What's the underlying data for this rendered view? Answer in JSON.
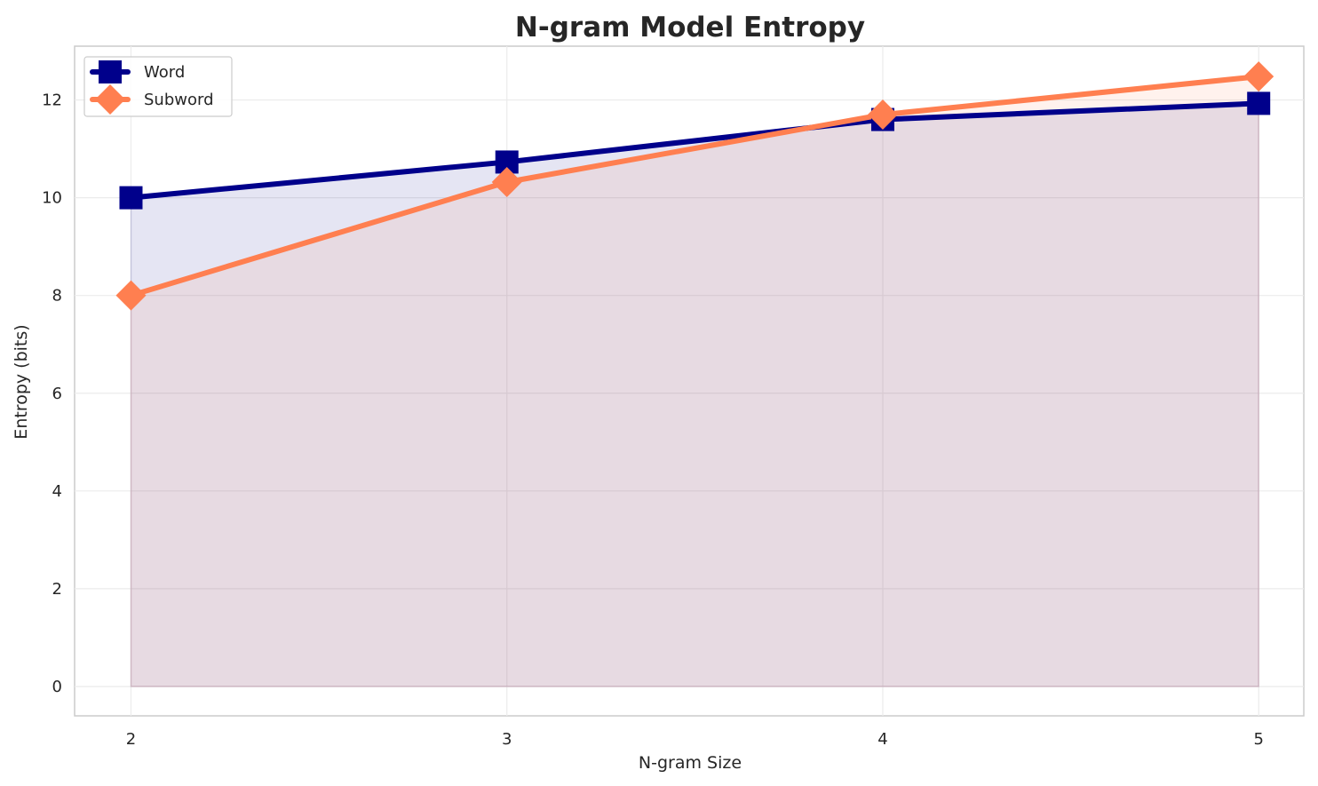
{
  "chart_data": {
    "type": "line",
    "title": "N-gram Model Entropy",
    "xlabel": "N-gram Size",
    "ylabel": "Entropy (bits)",
    "x": [
      2,
      3,
      4,
      5
    ],
    "x_ticks": [
      "2",
      "3",
      "4",
      "5"
    ],
    "y_ticks": [
      "0",
      "2",
      "4",
      "6",
      "8",
      "10",
      "12"
    ],
    "xlim": [
      1.85,
      5.12
    ],
    "ylim": [
      -0.6,
      13.1
    ],
    "grid": true,
    "legend_position": "top-left",
    "area_fill": true,
    "series": [
      {
        "name": "Word",
        "values": [
          10.0,
          10.73,
          11.6,
          11.93
        ],
        "color": "#00008b",
        "marker": "square",
        "fill_color": "#e6e6f6"
      },
      {
        "name": "Subword",
        "values": [
          8.0,
          10.32,
          11.7,
          12.48
        ],
        "color": "#ff7f50",
        "marker": "diamond",
        "fill_color": "#fdebe6"
      }
    ]
  }
}
